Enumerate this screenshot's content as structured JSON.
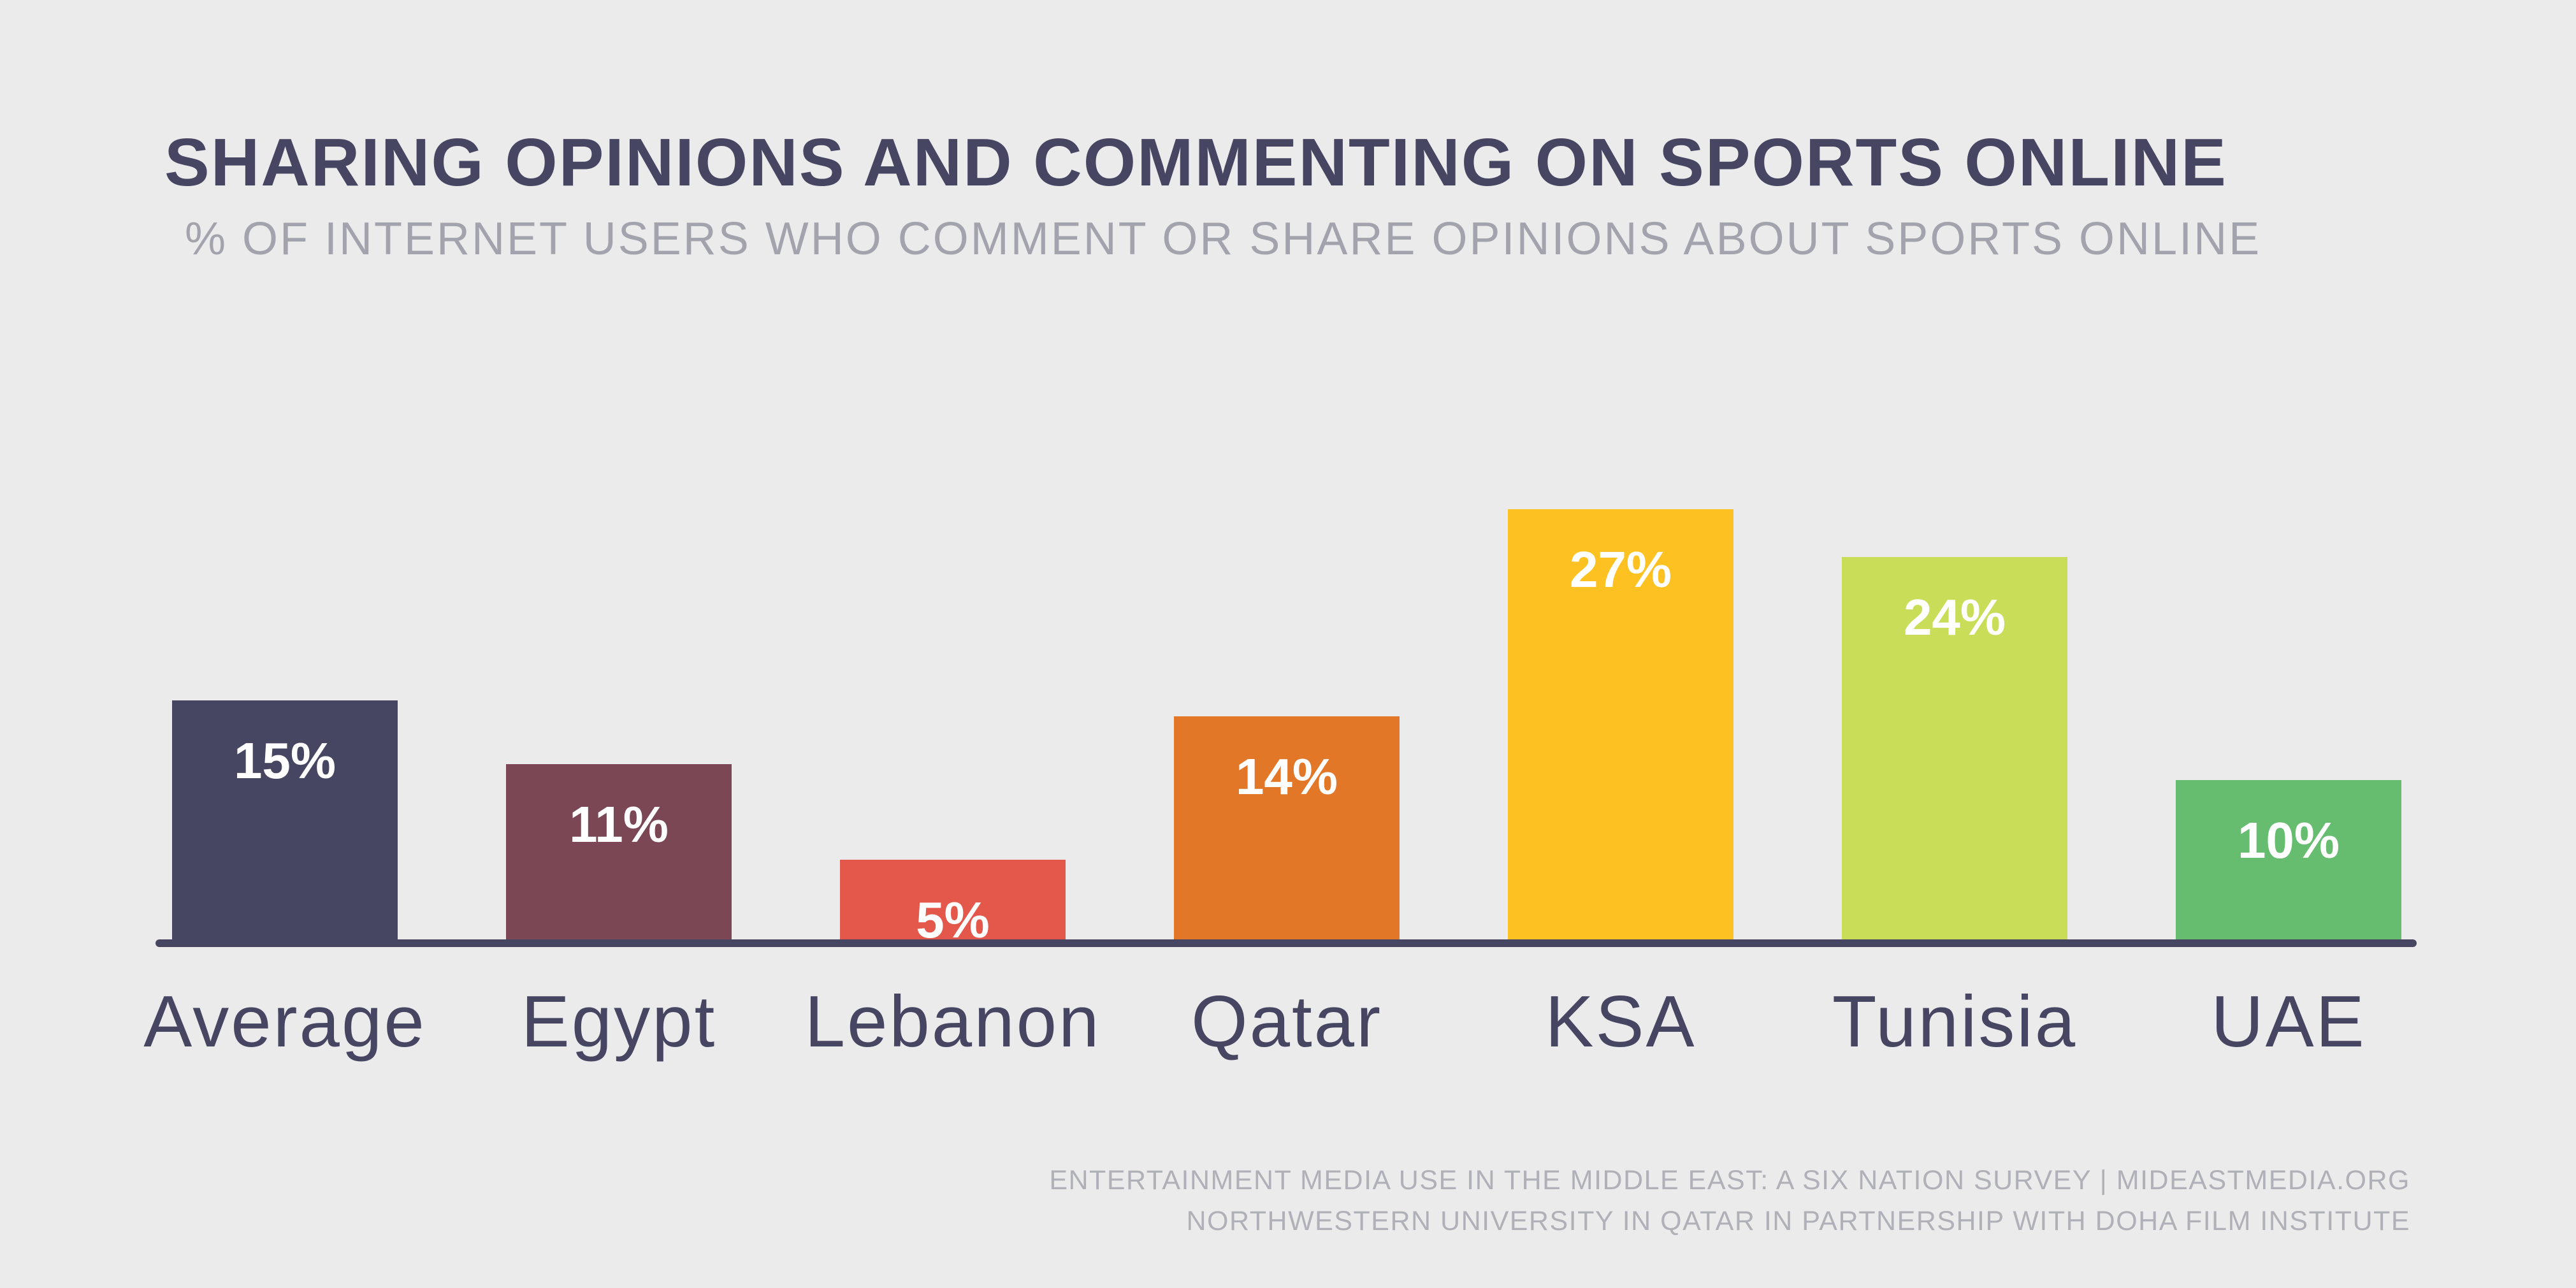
{
  "header": {
    "title": "SHARING OPINIONS AND COMMENTING ON SPORTS ONLINE",
    "subtitle": "% OF INTERNET USERS WHO COMMENT OR SHARE OPINIONS ABOUT SPORTS ONLINE"
  },
  "footer": {
    "line1": "ENTERTAINMENT MEDIA USE IN THE MIDDLE EAST: A SIX NATION SURVEY | MIDEASTMEDIA.ORG",
    "line2": "NORTHWESTERN UNIVERSITY IN QATAR IN PARTNERSHIP WITH DOHA FILM INSTITUTE"
  },
  "colors": {
    "background": "#ebebec",
    "axis": "#464562",
    "title": "#464562",
    "subtitle": "#a3a3ae"
  },
  "chart_data": {
    "type": "bar",
    "title": "SHARING OPINIONS AND COMMENTING ON SPORTS ONLINE",
    "subtitle": "% OF INTERNET USERS WHO COMMENT OR SHARE OPINIONS ABOUT SPORTS ONLINE",
    "xlabel": "",
    "ylabel": "",
    "ylim": [
      0,
      27
    ],
    "grid": false,
    "categories": [
      "Average",
      "Egypt",
      "Lebanon",
      "Qatar",
      "KSA",
      "Tunisia",
      "UAE"
    ],
    "values": [
      15,
      11,
      5,
      14,
      27,
      24,
      10
    ],
    "value_labels": [
      "15%",
      "11%",
      "5%",
      "14%",
      "27%",
      "24%",
      "10%"
    ],
    "bar_colors": [
      "#464562",
      "#7b4754",
      "#e4574b",
      "#e37728",
      "#fdc222",
      "#c9dd58",
      "#67bd6f"
    ]
  }
}
